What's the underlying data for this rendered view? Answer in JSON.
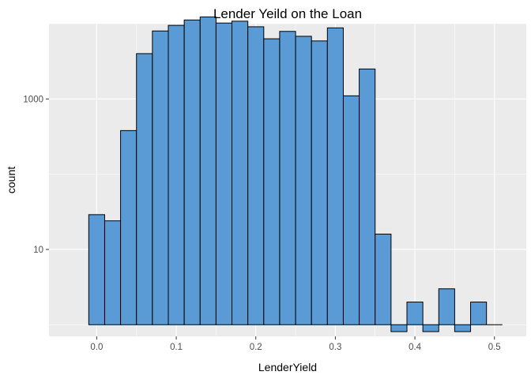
{
  "chart_data": {
    "type": "bar",
    "title": "Lender Yeild on the Loan",
    "xlabel": "LenderYield",
    "ylabel": "count",
    "y_scale": "log10",
    "bar_color": "#5b9bd5",
    "bar_border_color": "#000000",
    "panel_background": "#ebebeb",
    "grid": true,
    "legend": "none",
    "bin_width": 0.02,
    "xlim": [
      -0.06,
      0.54
    ],
    "ylim": [
      0.7,
      10000
    ],
    "x_ticks": [
      0.0,
      0.1,
      0.2,
      0.3,
      0.4,
      0.5
    ],
    "x_tick_labels": [
      "0.0",
      "0.1",
      "0.2",
      "0.3",
      "0.4",
      "0.5"
    ],
    "y_ticks": [
      10,
      1000
    ],
    "y_tick_labels": [
      "10",
      "1000"
    ],
    "bins": [
      {
        "x": 0.0,
        "count": 29
      },
      {
        "x": 0.02,
        "count": 24
      },
      {
        "x": 0.04,
        "count": 380
      },
      {
        "x": 0.06,
        "count": 4000
      },
      {
        "x": 0.08,
        "count": 8000
      },
      {
        "x": 0.1,
        "count": 9500
      },
      {
        "x": 0.12,
        "count": 11200
      },
      {
        "x": 0.14,
        "count": 12300
      },
      {
        "x": 0.16,
        "count": 10200
      },
      {
        "x": 0.18,
        "count": 10800
      },
      {
        "x": 0.2,
        "count": 9100
      },
      {
        "x": 0.22,
        "count": 6300
      },
      {
        "x": 0.24,
        "count": 7900
      },
      {
        "x": 0.26,
        "count": 6800
      },
      {
        "x": 0.28,
        "count": 5900
      },
      {
        "x": 0.3,
        "count": 8800
      },
      {
        "x": 0.32,
        "count": 1100
      },
      {
        "x": 0.34,
        "count": 2500
      },
      {
        "x": 0.36,
        "count": 16
      },
      {
        "x": 0.38,
        "count": 1
      },
      {
        "x": 0.4,
        "count": 2
      },
      {
        "x": 0.42,
        "count": 1
      },
      {
        "x": 0.44,
        "count": 3
      },
      {
        "x": 0.46,
        "count": 1
      },
      {
        "x": 0.48,
        "count": 2
      },
      {
        "x": 0.5,
        "count": 0
      }
    ]
  }
}
